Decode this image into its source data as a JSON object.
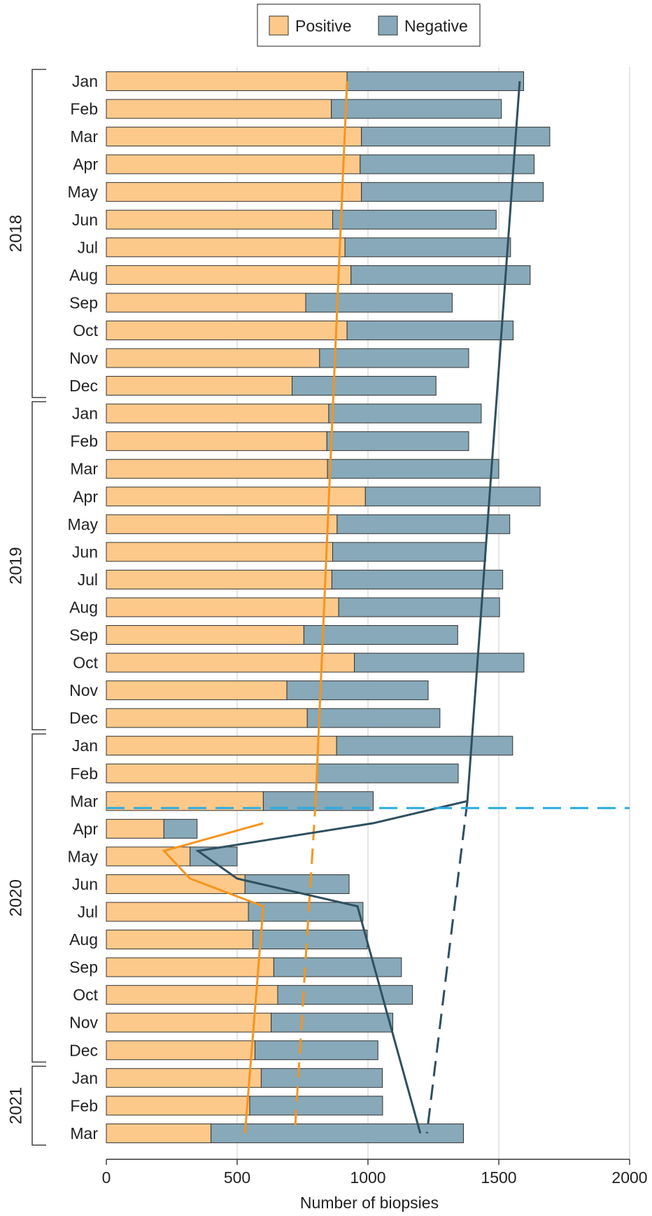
{
  "chart_data": {
    "type": "bar",
    "orientation": "horizontal",
    "stacked": true,
    "xlabel": "Number of biopsies",
    "xlim": [
      0,
      2000
    ],
    "xticks": [
      0,
      500,
      1000,
      1500,
      2000
    ],
    "grid": true,
    "legend_position": "top-center",
    "categories": [
      "Jan",
      "Feb",
      "Mar",
      "Apr",
      "May",
      "Jun",
      "Jul",
      "Aug",
      "Sep",
      "Oct",
      "Nov",
      "Dec",
      "Jan",
      "Feb",
      "Mar",
      "Apr",
      "May",
      "Jun",
      "Jul",
      "Aug",
      "Sep",
      "Oct",
      "Nov",
      "Dec",
      "Jan",
      "Feb",
      "Mar",
      "Apr",
      "May",
      "Jun",
      "Jul",
      "Aug",
      "Sep",
      "Oct",
      "Nov",
      "Dec",
      "Jan",
      "Feb",
      "Mar"
    ],
    "year_groups": [
      {
        "label": "2018",
        "start": 0,
        "end": 11
      },
      {
        "label": "2019",
        "start": 12,
        "end": 23
      },
      {
        "label": "2020",
        "start": 24,
        "end": 35
      },
      {
        "label": "2021",
        "start": 36,
        "end": 38
      }
    ],
    "series": [
      {
        "name": "Positive",
        "color": "#fdc98a",
        "values": [
          920,
          860,
          975,
          970,
          975,
          865,
          912,
          935,
          762,
          920,
          815,
          710,
          850,
          843,
          845,
          990,
          882,
          865,
          862,
          888,
          755,
          948,
          690,
          768,
          880,
          805,
          600,
          220,
          320,
          530,
          543,
          560,
          640,
          655,
          630,
          568,
          592,
          548,
          400
        ]
      },
      {
        "name": "Negative",
        "color": "#87a9b9",
        "values": [
          675,
          650,
          720,
          665,
          695,
          625,
          633,
          685,
          560,
          635,
          570,
          550,
          583,
          542,
          655,
          668,
          660,
          585,
          653,
          615,
          588,
          648,
          540,
          507,
          673,
          540,
          420,
          127,
          180,
          398,
          438,
          437,
          488,
          515,
          465,
          470,
          463,
          508,
          965
        ]
      }
    ],
    "trend_lines": [
      {
        "series": "Positive",
        "color": "#f7941d",
        "dashed": false,
        "points": [
          [
            920,
            0
          ],
          [
            800,
            26
          ]
        ]
      },
      {
        "series": "Positive",
        "color": "#f7941d",
        "dashed": true,
        "points": [
          [
            800,
            26
          ],
          [
            720,
            38
          ]
        ]
      },
      {
        "series": "Positive",
        "color": "#f7941d",
        "dashed": false,
        "points": [
          [
            600,
            26.8
          ],
          [
            220,
            27.8
          ],
          [
            320,
            28.8
          ],
          [
            600,
            29.8
          ],
          [
            530,
            38
          ]
        ]
      },
      {
        "series": "Negative",
        "color": "#2e505f",
        "dashed": false,
        "points": [
          [
            1580,
            0
          ],
          [
            1380,
            26
          ]
        ]
      },
      {
        "series": "Negative",
        "color": "#2e505f",
        "dashed": true,
        "points": [
          [
            1380,
            26
          ],
          [
            1225,
            38
          ]
        ]
      },
      {
        "series": "Negative",
        "color": "#2e505f",
        "dashed": false,
        "points": [
          [
            1380,
            26
          ],
          [
            1020,
            26.8
          ],
          [
            350,
            27.8
          ],
          [
            500,
            28.8
          ],
          [
            960,
            29.8
          ],
          [
            1200,
            38
          ]
        ]
      }
    ],
    "reference_line": {
      "color": "#29abe2",
      "dashed": true,
      "at_category_index": 26.25
    }
  }
}
